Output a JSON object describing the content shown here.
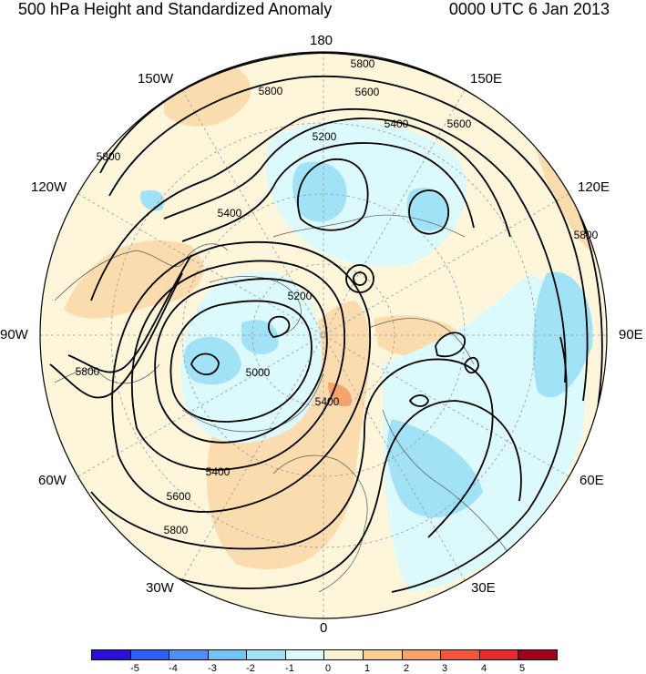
{
  "title": "500 hPa Height and Standardized Anomaly",
  "timestamp": "0000 UTC 6 Jan 2013",
  "longitude_labels": [
    "180",
    "150E",
    "120E",
    "90E",
    "60E",
    "30E",
    "0",
    "30W",
    "60W",
    "90W",
    "120W",
    "150W"
  ],
  "contour_labels": [
    "5800",
    "5800",
    "5800",
    "5800",
    "5600",
    "5600",
    "5400",
    "5400",
    "5400",
    "5400",
    "5200",
    "5200",
    "5000",
    "5600",
    "5800",
    "5800"
  ],
  "colorbar": {
    "colors": [
      "#2a0fd6",
      "#2f5ef5",
      "#4f8ff7",
      "#72c4f4",
      "#a2e2f7",
      "#dcf9fb",
      "#fdf3d2",
      "#fbcf94",
      "#f7a46c",
      "#f2573e",
      "#e52b2f",
      "#a0001e"
    ],
    "tick_labels": [
      "-5",
      "-4",
      "-3",
      "-2",
      "-1",
      "0",
      "1",
      "2",
      "3",
      "4",
      "5"
    ]
  },
  "palette": {
    "background_fill": "#fdf6db",
    "negative_light": "#dcf9fb",
    "negative_medium": "#a2e2f7",
    "positive_light": "#fbdcae",
    "positive_medium": "#f7a46c"
  }
}
